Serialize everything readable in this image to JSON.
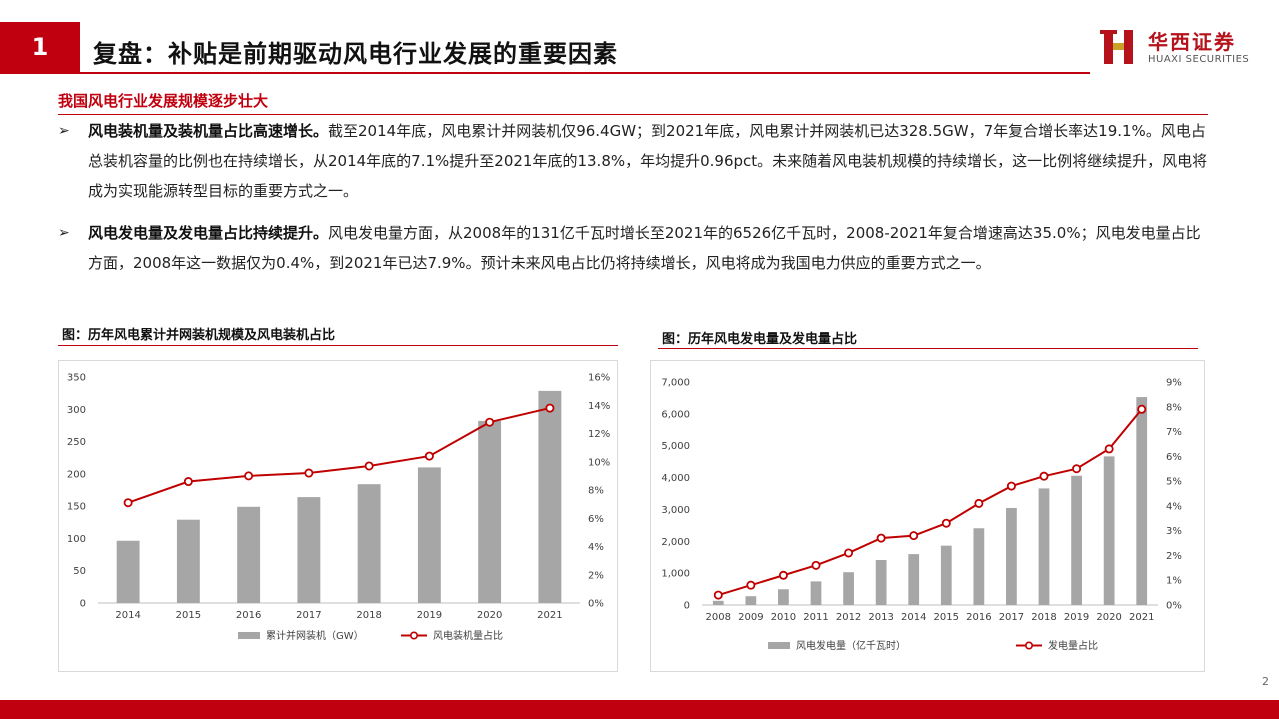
{
  "header": {
    "section_number": "1",
    "title": "复盘：补贴是前期驱动风电行业发展的重要因素",
    "logo_cn": "华西证券",
    "logo_en": "HUAXI SECURITIES"
  },
  "subhead": "我国风电行业发展规模逐步壮大",
  "bullets": [
    {
      "bold": "风电装机量及装机量占比高速增长。",
      "rest": "截至2014年底，风电累计并网装机仅96.4GW；到2021年底，风电累计并网装机已达328.5GW，7年复合增长率达19.1%。风电占总装机容量的比例也在持续增长，从2014年底的7.1%提升至2021年底的13.8%，年均提升0.96pct。未来随着风电装机规模的持续增长，这一比例将继续提升，风电将成为实现能源转型目标的重要方式之一。"
    },
    {
      "bold": "风电发电量及发电量占比持续提升。",
      "rest": "风电发电量方面，从2008年的131亿千瓦时增长至2021年的6526亿千瓦时，2008-2021年复合增速高达35.0%；风电发电量占比方面，2008年这一数据仅为0.4%，到2021年已达7.9%。预计未来风电占比仍将持续增长，风电将成为我国电力供应的重要方式之一。"
    }
  ],
  "chart_data": [
    {
      "type": "bar",
      "title": "图：历年风电累计并网装机规模及风电装机占比",
      "categories": [
        "2014",
        "2015",
        "2016",
        "2017",
        "2018",
        "2019",
        "2020",
        "2021"
      ],
      "series": [
        {
          "name": "累计并网装机（GW）",
          "type": "bar",
          "axis": "left",
          "color": "#a6a6a6",
          "values": [
            96.4,
            129,
            149,
            164,
            184,
            210,
            282,
            328.5
          ]
        },
        {
          "name": "风电装机量占比",
          "type": "line",
          "axis": "right",
          "color": "#c00000",
          "values": [
            7.1,
            8.6,
            9.0,
            9.2,
            9.7,
            10.4,
            12.8,
            13.8
          ]
        }
      ],
      "ylim": [
        0,
        350
      ],
      "yticks": [
        "0",
        "50",
        "100",
        "150",
        "200",
        "250",
        "300",
        "350"
      ],
      "y2lim": [
        0,
        16
      ],
      "y2ticks": [
        "0%",
        "2%",
        "4%",
        "6%",
        "8%",
        "10%",
        "12%",
        "14%",
        "16%"
      ],
      "legend": "bottom",
      "grid": false
    },
    {
      "type": "bar",
      "title": "图：历年风电发电量及发电量占比",
      "categories": [
        "2008",
        "2009",
        "2010",
        "2011",
        "2012",
        "2013",
        "2014",
        "2015",
        "2016",
        "2017",
        "2018",
        "2019",
        "2020",
        "2021"
      ],
      "series": [
        {
          "name": "风电发电量（亿千瓦时）",
          "type": "bar",
          "axis": "left",
          "color": "#a6a6a6",
          "values": [
            131,
            276,
            494,
            741,
            1030,
            1412,
            1598,
            1863,
            2409,
            3046,
            3660,
            4057,
            4665,
            6526
          ]
        },
        {
          "name": "发电量占比",
          "type": "line",
          "axis": "right",
          "color": "#c00000",
          "values": [
            0.4,
            0.8,
            1.2,
            1.6,
            2.1,
            2.7,
            2.8,
            3.3,
            4.1,
            4.8,
            5.2,
            5.5,
            6.3,
            7.9
          ]
        }
      ],
      "ylim": [
        0,
        7000
      ],
      "yticks": [
        "0",
        "1,000",
        "2,000",
        "3,000",
        "4,000",
        "5,000",
        "6,000",
        "7,000"
      ],
      "y2lim": [
        0,
        9
      ],
      "y2ticks": [
        "0%",
        "1%",
        "2%",
        "3%",
        "4%",
        "5%",
        "6%",
        "7%",
        "8%",
        "9%"
      ],
      "legend": "bottom",
      "grid": false
    }
  ],
  "page_number": "2",
  "colors": {
    "brand_red": "#c0000e",
    "bar_gray": "#a6a6a6",
    "line_red": "#c00000"
  }
}
